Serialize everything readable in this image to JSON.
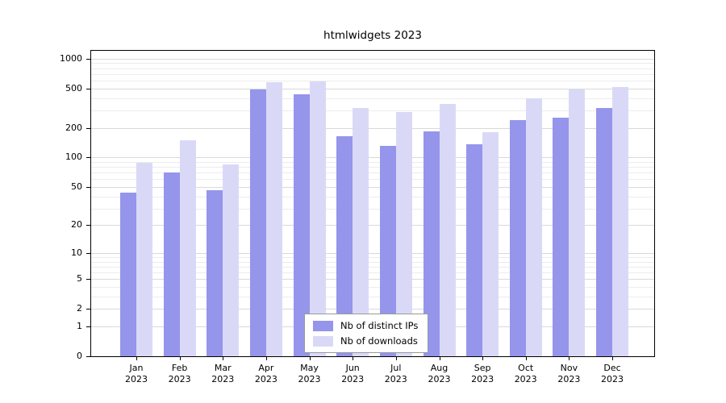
{
  "chart_data": {
    "type": "bar",
    "title": "htmlwidgets 2023",
    "categories": [
      "Jan",
      "Feb",
      "Mar",
      "Apr",
      "May",
      "Jun",
      "Jul",
      "Aug",
      "Sep",
      "Oct",
      "Nov",
      "Dec"
    ],
    "year": "2023",
    "series": [
      {
        "name": "Nb of distinct IPs",
        "color": "#9595ec",
        "values": [
          44,
          70,
          46,
          490,
          440,
          165,
          130,
          185,
          135,
          240,
          255,
          320
        ]
      },
      {
        "name": "Nb of downloads",
        "color": "#d9d9f7",
        "values": [
          88,
          150,
          85,
          580,
          590,
          320,
          290,
          350,
          180,
          400,
          490,
          515
        ]
      }
    ],
    "yscale": "log10(value+1)",
    "yticks": [
      1000,
      500,
      200,
      100,
      50,
      20,
      10,
      5,
      2,
      1,
      0
    ],
    "yticks_minor": [
      3,
      4,
      6,
      7,
      8,
      9,
      30,
      40,
      60,
      70,
      80,
      90,
      300,
      400,
      600,
      700,
      800,
      900
    ],
    "ylim": [
      0,
      1200
    ],
    "xlabel": "",
    "ylabel": "",
    "grid": "horizontal",
    "legend_position": "bottom-center"
  }
}
